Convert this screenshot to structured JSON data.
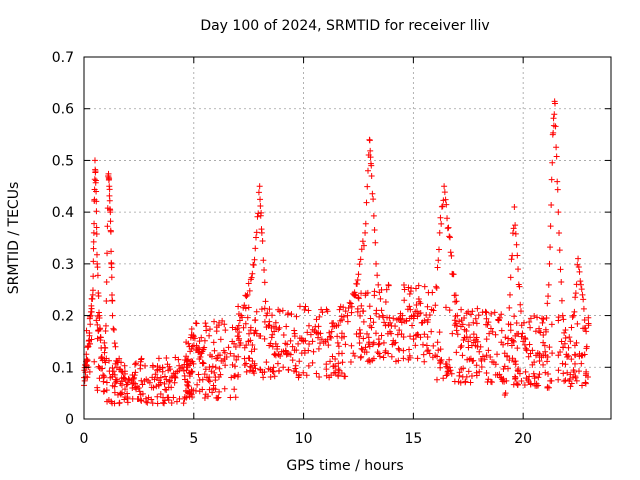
{
  "chart_data": {
    "type": "scatter",
    "title": "Day 100 of 2024, SRMTID for receiver lliv",
    "xlabel": "GPS time / hours",
    "ylabel": "SRMTID / TECUs",
    "xlim": [
      0,
      24
    ],
    "ylim": [
      0,
      0.7
    ],
    "xticks": [
      0,
      5,
      10,
      15,
      20
    ],
    "xtick_labels": [
      "0",
      "5",
      "10",
      "15",
      "20"
    ],
    "yticks": [
      0,
      0.1,
      0.2,
      0.3,
      0.4,
      0.5,
      0.6,
      0.7
    ],
    "ytick_labels": [
      "0",
      "0.1",
      "0.2",
      "0.3",
      "0.4",
      "0.5",
      "0.6",
      "0.7"
    ],
    "grid": true,
    "marker": "+",
    "series": [
      {
        "name": "SRMTID",
        "color": "#ff0000",
        "points": [
          [
            0.0,
            0.08
          ],
          [
            0.1,
            0.1
          ],
          [
            0.2,
            0.14
          ],
          [
            0.3,
            0.2
          ],
          [
            0.4,
            0.24
          ],
          [
            0.45,
            0.36
          ],
          [
            0.5,
            0.5
          ],
          [
            0.55,
            0.44
          ],
          [
            0.6,
            0.3
          ],
          [
            0.7,
            0.2
          ],
          [
            0.8,
            0.12
          ],
          [
            0.9,
            0.08
          ],
          [
            1.0,
            0.18
          ],
          [
            1.1,
            0.47
          ],
          [
            1.15,
            0.45
          ],
          [
            1.2,
            0.4
          ],
          [
            1.25,
            0.3
          ],
          [
            1.3,
            0.2
          ],
          [
            1.5,
            0.1
          ],
          [
            1.8,
            0.08
          ],
          [
            2.0,
            0.07
          ],
          [
            2.5,
            0.06
          ],
          [
            3.0,
            0.07
          ],
          [
            3.5,
            0.08
          ],
          [
            4.0,
            0.08
          ],
          [
            4.5,
            0.1
          ],
          [
            4.8,
            0.14
          ],
          [
            5.0,
            0.16
          ],
          [
            5.3,
            0.12
          ],
          [
            5.6,
            0.08
          ],
          [
            6.0,
            0.1
          ],
          [
            6.5,
            0.12
          ],
          [
            7.0,
            0.16
          ],
          [
            7.3,
            0.22
          ],
          [
            7.6,
            0.27
          ],
          [
            7.8,
            0.33
          ],
          [
            8.0,
            0.45
          ],
          [
            8.1,
            0.36
          ],
          [
            8.3,
            0.2
          ],
          [
            8.6,
            0.14
          ],
          [
            9.0,
            0.13
          ],
          [
            9.5,
            0.14
          ],
          [
            10.0,
            0.15
          ],
          [
            10.5,
            0.17
          ],
          [
            11.0,
            0.15
          ],
          [
            11.5,
            0.18
          ],
          [
            12.0,
            0.2
          ],
          [
            12.3,
            0.24
          ],
          [
            12.5,
            0.28
          ],
          [
            12.8,
            0.36
          ],
          [
            13.0,
            0.54
          ],
          [
            13.1,
            0.47
          ],
          [
            13.3,
            0.3
          ],
          [
            13.6,
            0.2
          ],
          [
            14.0,
            0.18
          ],
          [
            14.5,
            0.2
          ],
          [
            15.0,
            0.2
          ],
          [
            15.5,
            0.19
          ],
          [
            16.0,
            0.22
          ],
          [
            16.2,
            0.36
          ],
          [
            16.4,
            0.45
          ],
          [
            16.6,
            0.37
          ],
          [
            16.8,
            0.28
          ],
          [
            17.0,
            0.2
          ],
          [
            17.5,
            0.15
          ],
          [
            18.0,
            0.13
          ],
          [
            18.5,
            0.12
          ],
          [
            19.0,
            0.08
          ],
          [
            19.2,
            0.05
          ],
          [
            19.4,
            0.24
          ],
          [
            19.6,
            0.41
          ],
          [
            19.8,
            0.26
          ],
          [
            20.0,
            0.15
          ],
          [
            20.5,
            0.11
          ],
          [
            21.0,
            0.13
          ],
          [
            21.2,
            0.3
          ],
          [
            21.35,
            0.55
          ],
          [
            21.45,
            0.61
          ],
          [
            21.6,
            0.4
          ],
          [
            21.8,
            0.2
          ],
          [
            22.0,
            0.12
          ],
          [
            22.3,
            0.2
          ],
          [
            22.5,
            0.31
          ],
          [
            22.7,
            0.24
          ],
          [
            22.9,
            0.14
          ]
        ]
      }
    ],
    "noise_bands": [
      {
        "x": [
          0.0,
          1.0
        ],
        "y": [
          0.05,
          0.22
        ]
      },
      {
        "x": [
          1.0,
          5.0
        ],
        "y": [
          0.03,
          0.12
        ]
      },
      {
        "x": [
          4.5,
          7.0
        ],
        "y": [
          0.04,
          0.19
        ]
      },
      {
        "x": [
          7.0,
          12.0
        ],
        "y": [
          0.08,
          0.22
        ]
      },
      {
        "x": [
          12.0,
          16.0
        ],
        "y": [
          0.11,
          0.26
        ]
      },
      {
        "x": [
          16.0,
          19.0
        ],
        "y": [
          0.07,
          0.22
        ]
      },
      {
        "x": [
          19.0,
          23.0
        ],
        "y": [
          0.06,
          0.2
        ]
      }
    ]
  }
}
